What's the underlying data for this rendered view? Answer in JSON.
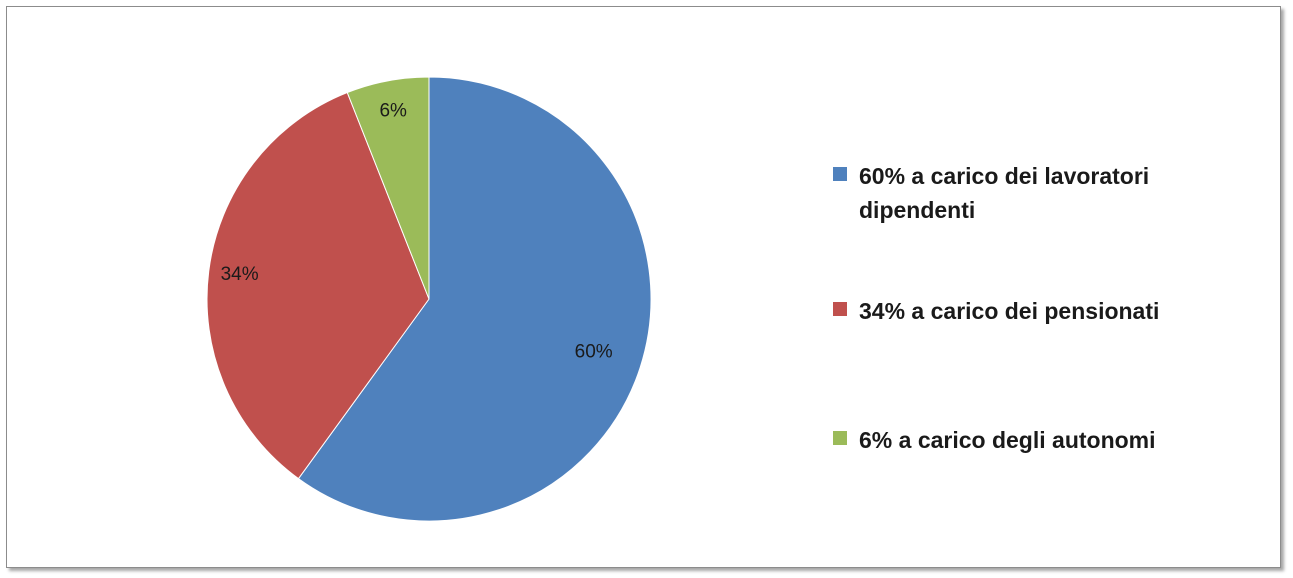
{
  "chart_data": {
    "type": "pie",
    "title": "",
    "slices": [
      {
        "label": "60% a carico dei lavoratori dipendenti",
        "value": 60,
        "data_label": "60%",
        "color": "#4F81BD"
      },
      {
        "label": "34% a carico dei pensionati",
        "value": 34,
        "data_label": "34%",
        "color": "#C0504D"
      },
      {
        "label": "6% a carico degli autonomi",
        "value": 6,
        "data_label": "6%",
        "color": "#9BBB59"
      }
    ],
    "start_angle": "12 o'clock",
    "direction": "clockwise",
    "legend_position": "right"
  }
}
